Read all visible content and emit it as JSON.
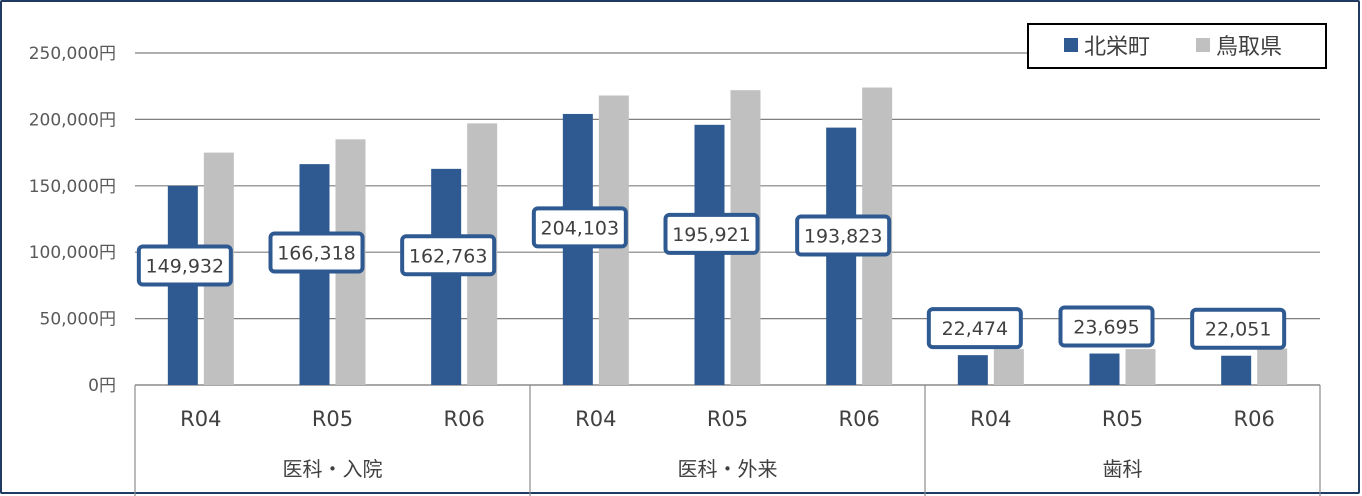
{
  "chart_data": {
    "type": "bar",
    "y_tick_labels": [
      "0円",
      "50,000円",
      "100,000円",
      "150,000円",
      "200,000円",
      "250,000円"
    ],
    "ylim": [
      0,
      250000
    ],
    "y_ticks": [
      0,
      50000,
      100000,
      150000,
      200000,
      250000
    ],
    "grid": true,
    "legend_position": "top-right",
    "groups": [
      {
        "label": "医科・入院",
        "categories": [
          "R04",
          "R05",
          "R06"
        ]
      },
      {
        "label": "医科・外来",
        "categories": [
          "R04",
          "R05",
          "R06"
        ]
      },
      {
        "label": "歯科",
        "categories": [
          "R04",
          "R05",
          "R06"
        ]
      }
    ],
    "series": [
      {
        "name": "北栄町",
        "color": "#2e5a91",
        "values": [
          149932,
          166318,
          162763,
          204103,
          195921,
          193823,
          22474,
          23695,
          22051
        ],
        "data_labels": [
          "149,932",
          "166,318",
          "162,763",
          "204,103",
          "195,921",
          "193,823",
          "22,474",
          "23,695",
          "22,051"
        ]
      },
      {
        "name": "鳥取県",
        "color": "#c0c0c0",
        "values": [
          175000,
          185000,
          197000,
          218000,
          222000,
          224000,
          27000,
          27000,
          27500
        ]
      }
    ]
  }
}
